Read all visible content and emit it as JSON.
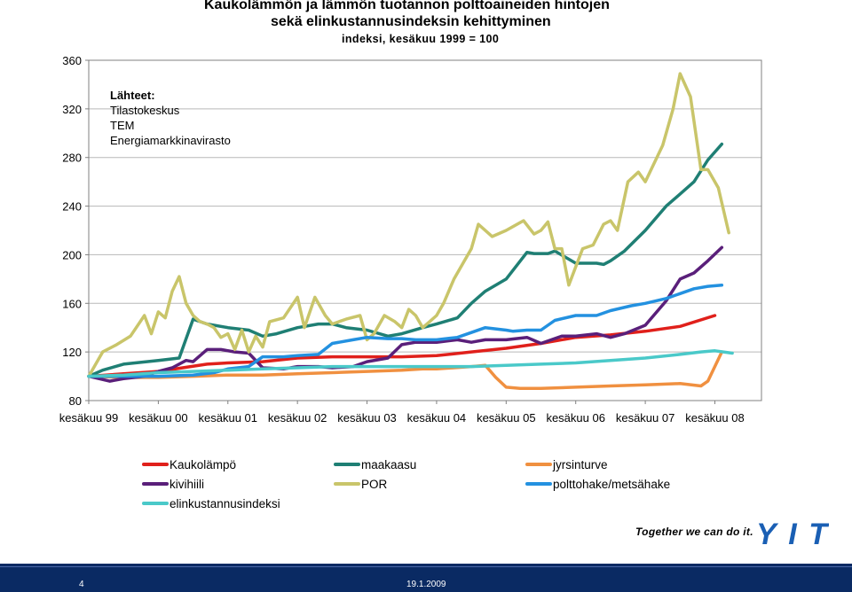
{
  "title": {
    "line1": "Kaukolämmön ja lämmön tuotannon polttoaineiden hintojen",
    "line2": "sekä elinkustannusindeksin kehittyminen",
    "line3": "indeksi, kesäkuu 1999 = 100"
  },
  "sources": {
    "heading": "Lähteet:",
    "items": [
      "Tilastokeskus",
      "TEM",
      "Energiamarkkinavirasto"
    ]
  },
  "chart_data": {
    "type": "line",
    "title": "Kaukolämmön ja lämmön tuotannon polttoaineiden hintojen sekä elinkustannusindeksin kehittyminen",
    "subtitle": "indeksi, kesäkuu 1999 = 100",
    "xlabel": "",
    "ylabel": "",
    "ylim": [
      80,
      360
    ],
    "yticks": [
      80,
      120,
      160,
      200,
      240,
      280,
      320,
      360
    ],
    "xlim": [
      1999.5,
      2009.17
    ],
    "xticks": [
      {
        "x": 1999.5,
        "label": "kesäkuu 99"
      },
      {
        "x": 2000.5,
        "label": "kesäkuu 00"
      },
      {
        "x": 2001.5,
        "label": "kesäkuu 01"
      },
      {
        "x": 2002.5,
        "label": "kesäkuu 02"
      },
      {
        "x": 2003.5,
        "label": "kesäkuu 03"
      },
      {
        "x": 2004.5,
        "label": "kesäkuu 04"
      },
      {
        "x": 2005.5,
        "label": "kesäkuu 05"
      },
      {
        "x": 2006.5,
        "label": "kesäkuu 06"
      },
      {
        "x": 2007.5,
        "label": "kesäkuu 07"
      },
      {
        "x": 2008.5,
        "label": "kesäkuu 08"
      }
    ],
    "grid": "horizontal",
    "legend_position": "bottom",
    "series": [
      {
        "name": "Kaukolämpö",
        "color": "#e0201b",
        "x": [
          1999.5,
          2000.0,
          2000.5,
          2000.85,
          2001.2,
          2001.5,
          2002.0,
          2002.5,
          2003.0,
          2003.5,
          2004.0,
          2004.5,
          2005.0,
          2005.5,
          2006.0,
          2006.5,
          2007.0,
          2007.5,
          2008.0,
          2008.5
        ],
        "y": [
          100,
          102,
          104,
          107,
          110,
          111,
          112,
          115,
          116,
          116,
          116,
          117,
          120,
          123,
          127,
          132,
          134,
          137,
          141,
          150
        ]
      },
      {
        "name": "maakaasu",
        "color": "#1f7f74",
        "x": [
          1999.5,
          1999.7,
          2000.0,
          2000.5,
          2000.8,
          2001.0,
          2001.2,
          2001.5,
          2001.8,
          2002.0,
          2002.2,
          2002.5,
          2002.8,
          2003.0,
          2003.2,
          2003.5,
          2003.8,
          2004.0,
          2004.3,
          2004.5,
          2004.8,
          2005.0,
          2005.2,
          2005.5,
          2005.8,
          2005.9,
          2006.0,
          2006.1,
          2006.2,
          2006.5,
          2006.8,
          2006.9,
          2007.0,
          2007.2,
          2007.5,
          2007.8,
          2008.0,
          2008.2,
          2008.4,
          2008.6
        ],
        "y": [
          100,
          105,
          110,
          113,
          115,
          147,
          143,
          140,
          138,
          133,
          135,
          140,
          143,
          143,
          140,
          138,
          133,
          135,
          140,
          143,
          148,
          160,
          170,
          180,
          202,
          201,
          201,
          201,
          203,
          193,
          193,
          192,
          195,
          203,
          220,
          240,
          250,
          260,
          278,
          291
        ]
      },
      {
        "name": "jyrsinturve",
        "color": "#f09040",
        "x": [
          1999.5,
          2000.0,
          2000.5,
          2001.0,
          2001.5,
          2002.0,
          2002.5,
          2003.0,
          2003.5,
          2004.0,
          2004.3,
          2004.5,
          2005.0,
          2005.2,
          2005.35,
          2005.5,
          2005.7,
          2006.0,
          2006.5,
          2007.0,
          2007.5,
          2008.0,
          2008.3,
          2008.4,
          2008.6
        ],
        "y": [
          100,
          99,
          99,
          100,
          101,
          101,
          102,
          103,
          104,
          105,
          106,
          106,
          108,
          109,
          99,
          91,
          90,
          90,
          91,
          92,
          93,
          94,
          92,
          96,
          120
        ]
      },
      {
        "name": "kivihiili",
        "color": "#5a1f7a",
        "x": [
          1999.5,
          1999.8,
          2000.0,
          2000.3,
          2000.5,
          2000.7,
          2000.9,
          2001.0,
          2001.2,
          2001.4,
          2001.6,
          2001.8,
          2002.0,
          2002.3,
          2002.5,
          2002.8,
          2003.0,
          2003.3,
          2003.5,
          2003.8,
          2004.0,
          2004.2,
          2004.5,
          2004.8,
          2005.0,
          2005.2,
          2005.5,
          2005.8,
          2006.0,
          2006.3,
          2006.5,
          2006.8,
          2007.0,
          2007.2,
          2007.5,
          2007.8,
          2008.0,
          2008.2,
          2008.4,
          2008.6
        ],
        "y": [
          100,
          96,
          98,
          100,
          104,
          107,
          113,
          112,
          122,
          122,
          120,
          119,
          107,
          106,
          108,
          108,
          107,
          108,
          112,
          115,
          126,
          128,
          128,
          130,
          128,
          130,
          130,
          132,
          127,
          133,
          133,
          135,
          132,
          135,
          142,
          162,
          180,
          185,
          195,
          206
        ]
      },
      {
        "name": "POR",
        "color": "#c9c56a",
        "x": [
          1999.5,
          1999.7,
          1999.9,
          2000.1,
          2000.3,
          2000.4,
          2000.5,
          2000.6,
          2000.7,
          2000.8,
          2000.9,
          2001.0,
          2001.1,
          2001.2,
          2001.3,
          2001.4,
          2001.5,
          2001.6,
          2001.7,
          2001.8,
          2001.9,
          2002.0,
          2002.1,
          2002.3,
          2002.5,
          2002.6,
          2002.75,
          2002.9,
          2003.0,
          2003.2,
          2003.4,
          2003.5,
          2003.6,
          2003.75,
          2003.9,
          2004.0,
          2004.1,
          2004.2,
          2004.3,
          2004.4,
          2004.5,
          2004.6,
          2004.75,
          2004.9,
          2005.0,
          2005.1,
          2005.3,
          2005.5,
          2005.75,
          2005.9,
          2006.0,
          2006.1,
          2006.2,
          2006.3,
          2006.4,
          2006.5,
          2006.6,
          2006.75,
          2006.9,
          2007.0,
          2007.1,
          2007.25,
          2007.4,
          2007.5,
          2007.6,
          2007.75,
          2007.9,
          2008.0,
          2008.15,
          2008.3,
          2008.4,
          2008.55,
          2008.7
        ],
        "y": [
          100,
          120,
          126,
          133,
          150,
          135,
          153,
          148,
          170,
          182,
          160,
          150,
          145,
          143,
          140,
          132,
          135,
          122,
          138,
          120,
          133,
          124,
          145,
          148,
          165,
          140,
          165,
          150,
          143,
          147,
          150,
          130,
          135,
          150,
          145,
          140,
          155,
          150,
          140,
          145,
          150,
          160,
          180,
          195,
          205,
          225,
          215,
          220,
          228,
          217,
          220,
          227,
          205,
          205,
          175,
          190,
          205,
          208,
          225,
          228,
          220,
          260,
          268,
          260,
          272,
          290,
          320,
          349,
          330,
          270,
          270,
          255,
          218
        ]
      },
      {
        "name": "polttohake/metsähake",
        "color": "#2391e0",
        "x": [
          1999.5,
          2000.0,
          2000.5,
          2001.0,
          2001.3,
          2001.5,
          2001.8,
          2002.0,
          2002.3,
          2002.5,
          2002.8,
          2003.0,
          2003.3,
          2003.5,
          2003.8,
          2004.0,
          2004.2,
          2004.5,
          2004.8,
          2005.0,
          2005.2,
          2005.5,
          2005.6,
          2005.8,
          2006.0,
          2006.2,
          2006.5,
          2006.8,
          2007.0,
          2007.3,
          2007.5,
          2007.8,
          2008.0,
          2008.2,
          2008.4,
          2008.6
        ],
        "y": [
          100,
          100,
          100,
          101,
          103,
          106,
          108,
          116,
          116,
          117,
          118,
          127,
          130,
          132,
          131,
          131,
          130,
          130,
          132,
          136,
          140,
          138,
          137,
          138,
          138,
          146,
          150,
          150,
          154,
          158,
          160,
          164,
          168,
          172,
          174,
          175
        ]
      },
      {
        "name": "elinkustannusindeksi",
        "color": "#4ac9c9",
        "x": [
          1999.5,
          2000.0,
          2000.5,
          2001.0,
          2001.5,
          2002.0,
          2002.5,
          2003.0,
          2003.5,
          2004.0,
          2004.5,
          2005.0,
          2005.5,
          2006.0,
          2006.5,
          2007.0,
          2007.5,
          2008.0,
          2008.3,
          2008.5,
          2008.75
        ],
        "y": [
          100,
          101,
          103,
          104,
          105,
          106,
          107,
          108,
          108,
          108,
          108,
          108,
          109,
          110,
          111,
          113,
          115,
          118,
          120,
          121,
          119
        ]
      }
    ]
  },
  "footer": {
    "slogan": "Together we can do it.",
    "logo": "YIT",
    "page_number": "4",
    "date": "19.1.2009"
  }
}
